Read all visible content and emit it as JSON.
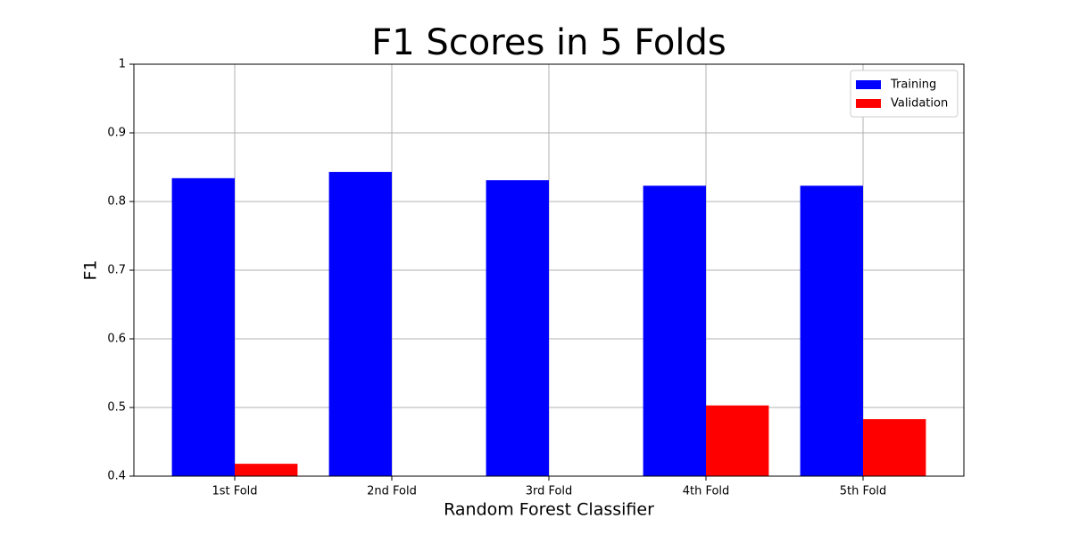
{
  "chart_data": {
    "type": "bar",
    "title": "F1 Scores in 5 Folds",
    "x_label": "Random Forest Classifier",
    "y_label": "F1",
    "categories": [
      "1st Fold",
      "2nd Fold",
      "3rd Fold",
      "4th Fold",
      "5th Fold"
    ],
    "series": [
      {
        "name": "Training",
        "color": "#0000ff",
        "values": [
          0.834,
          0.843,
          0.831,
          0.823,
          0.823
        ]
      },
      {
        "name": "Validation",
        "color": "#ff0000",
        "values": [
          0.418,
          null,
          null,
          0.503,
          0.483
        ]
      }
    ],
    "ylim": [
      0.4,
      1.0
    ],
    "yticks": [
      0.4,
      0.5,
      0.6,
      0.7,
      0.8,
      0.9,
      1.0
    ],
    "grid": true,
    "legend": "upper right"
  }
}
